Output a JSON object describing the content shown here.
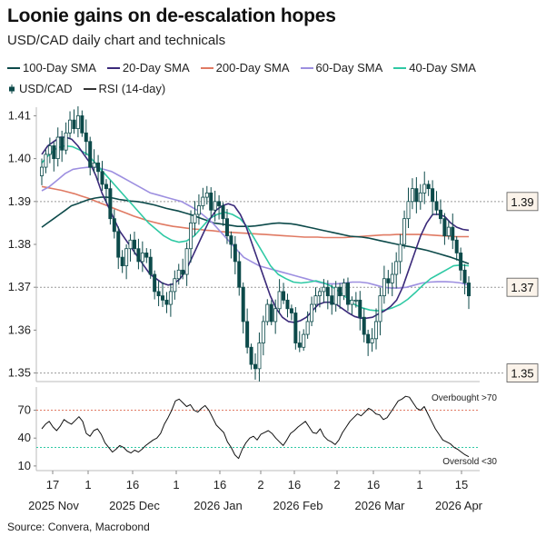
{
  "title": "Loonie gains on de-escalation hopes",
  "subtitle": "USD/CAD daily chart and technicals",
  "source": "Source: Convera, Macrobond",
  "colors": {
    "sma100": "#0d4a4a",
    "sma20": "#3b2a7a",
    "sma200": "#e07a63",
    "sma60": "#9d8fe0",
    "sma40": "#2fc9a4",
    "candle": "#0d4a4a",
    "rsi": "#111111",
    "overbought": "#e07a63",
    "oversold": "#2fc9a4",
    "grid": "#999999"
  },
  "legend": {
    "row1": [
      {
        "label": "100-Day SMA",
        "color": "#0d4a4a",
        "type": "line"
      },
      {
        "label": "20-Day SMA",
        "color": "#3b2a7a",
        "type": "line"
      },
      {
        "label": "200-Day SMA",
        "color": "#e07a63",
        "type": "line"
      },
      {
        "label": "60-Day SMA",
        "color": "#9d8fe0",
        "type": "line"
      },
      {
        "label": "40-Day SMA",
        "color": "#2fc9a4",
        "type": "line"
      }
    ],
    "row2": [
      {
        "label": "USD/CAD",
        "color": "#0d4a4a",
        "type": "candle"
      },
      {
        "label": "RSI (14-day)",
        "color": "#333333",
        "type": "line"
      }
    ]
  },
  "chart_data": {
    "type": "candlestick",
    "price_panel": {
      "ylim": [
        1.348,
        1.412
      ],
      "yticks": [
        1.35,
        1.36,
        1.37,
        1.38,
        1.39,
        1.4,
        1.41
      ],
      "ytick_labels": [
        "1.35",
        "1.36",
        "1.37",
        "1.38",
        "1.39",
        "1.40",
        "1.41"
      ],
      "reference_levels": [
        {
          "value": 1.39,
          "label": "1.39"
        },
        {
          "value": 1.37,
          "label": "1.37"
        },
        {
          "value": 1.35,
          "label": "1.35"
        }
      ],
      "closes": [
        1.398,
        1.401,
        1.403,
        1.4,
        1.405,
        1.402,
        1.406,
        1.409,
        1.407,
        1.41,
        1.406,
        1.404,
        1.398,
        1.399,
        1.397,
        1.394,
        1.393,
        1.386,
        1.383,
        1.377,
        1.375,
        1.379,
        1.381,
        1.379,
        1.376,
        1.378,
        1.377,
        1.373,
        1.369,
        1.368,
        1.367,
        1.366,
        1.369,
        1.372,
        1.374,
        1.373,
        1.379,
        1.385,
        1.387,
        1.389,
        1.391,
        1.392,
        1.388,
        1.39,
        1.389,
        1.386,
        1.382,
        1.38,
        1.376,
        1.37,
        1.362,
        1.356,
        1.352,
        1.351,
        1.357,
        1.362,
        1.366,
        1.362,
        1.365,
        1.369,
        1.367,
        1.365,
        1.364,
        1.357,
        1.356,
        1.359,
        1.362,
        1.366,
        1.368,
        1.369,
        1.37,
        1.368,
        1.366,
        1.37,
        1.368,
        1.371,
        1.366,
        1.367,
        1.367,
        1.363,
        1.359,
        1.357,
        1.358,
        1.362,
        1.368,
        1.372,
        1.371,
        1.373,
        1.376,
        1.38,
        1.386,
        1.39,
        1.393,
        1.39,
        1.392,
        1.394,
        1.393,
        1.39,
        1.388,
        1.386,
        1.382,
        1.384,
        1.381,
        1.378,
        1.374,
        1.371,
        1.368
      ],
      "series": [
        {
          "name": "100-Day SMA",
          "color": "#0d4a4a",
          "values": [
            1.384,
            1.385,
            1.386,
            1.387,
            1.388,
            1.389,
            1.3895,
            1.39,
            1.3905,
            1.3908,
            1.391,
            1.391,
            1.3908,
            1.3905,
            1.3903,
            1.3901,
            1.39,
            1.3898,
            1.3895,
            1.3892,
            1.3888,
            1.3884,
            1.3881,
            1.3878,
            1.3874,
            1.387,
            1.3865,
            1.386,
            1.3855,
            1.385,
            1.3848,
            1.3846,
            1.3844,
            1.3842,
            1.3842,
            1.3842,
            1.3843,
            1.3845,
            1.3847,
            1.3849,
            1.385,
            1.3849,
            1.3848,
            1.3846,
            1.3843,
            1.384,
            1.3837,
            1.3834,
            1.3831,
            1.3828,
            1.3825,
            1.3822,
            1.3819,
            1.3818,
            1.3817,
            1.3815,
            1.3812,
            1.3809,
            1.3806,
            1.3803,
            1.38,
            1.3797,
            1.3795,
            1.3792,
            1.3789,
            1.3786,
            1.3782,
            1.3778,
            1.3774,
            1.377,
            1.3765,
            1.376,
            1.3755
          ]
        },
        {
          "name": "20-Day SMA",
          "color": "#3b2a7a",
          "values": [
            1.401,
            1.403,
            1.404,
            1.405,
            1.405,
            1.4045,
            1.403,
            1.401,
            1.399,
            1.396,
            1.392,
            1.389,
            1.386,
            1.383,
            1.381,
            1.379,
            1.377,
            1.375,
            1.373,
            1.372,
            1.371,
            1.3705,
            1.3708,
            1.372,
            1.374,
            1.377,
            1.38,
            1.383,
            1.386,
            1.388,
            1.389,
            1.3895,
            1.389,
            1.387,
            1.384,
            1.38,
            1.376,
            1.372,
            1.368,
            1.365,
            1.363,
            1.362,
            1.3618,
            1.3622,
            1.363,
            1.3645,
            1.366,
            1.3665,
            1.3665,
            1.366,
            1.365,
            1.364,
            1.3632,
            1.3628,
            1.3628,
            1.363,
            1.3638,
            1.3645,
            1.3655,
            1.367,
            1.37,
            1.374,
            1.378,
            1.382,
            1.385,
            1.387,
            1.387,
            1.3865,
            1.385,
            1.384,
            1.3835,
            1.3833
          ]
        },
        {
          "name": "200-Day SMA",
          "color": "#e07a63",
          "values": [
            1.3935,
            1.3932,
            1.3929,
            1.3926,
            1.3922,
            1.3918,
            1.3913,
            1.3908,
            1.3902,
            1.3896,
            1.389,
            1.3884,
            1.3878,
            1.3872,
            1.3866,
            1.3861,
            1.3856,
            1.3852,
            1.3848,
            1.3845,
            1.3842,
            1.384,
            1.3838,
            1.3836,
            1.3835,
            1.3833,
            1.3832,
            1.383,
            1.3829,
            1.3828,
            1.3827,
            1.3826,
            1.3825,
            1.3824,
            1.3823,
            1.3822,
            1.3821,
            1.382,
            1.3819,
            1.3818,
            1.3817,
            1.3817,
            1.3817,
            1.3816,
            1.3816,
            1.3816,
            1.3816,
            1.3817,
            1.3818,
            1.3819,
            1.382,
            1.3821,
            1.3822,
            1.3822,
            1.3823,
            1.3823,
            1.3823,
            1.3823,
            1.3823,
            1.3822,
            1.3821,
            1.382,
            1.3819,
            1.3818,
            1.3818,
            1.3818
          ]
        },
        {
          "name": "60-Day SMA",
          "color": "#9d8fe0",
          "values": [
            1.3925,
            1.3935,
            1.395,
            1.3965,
            1.3975,
            1.3978,
            1.398,
            1.398,
            1.3975,
            1.397,
            1.396,
            1.395,
            1.394,
            1.393,
            1.392,
            1.3915,
            1.391,
            1.3905,
            1.39,
            1.389,
            1.388,
            1.3865,
            1.385,
            1.383,
            1.381,
            1.379,
            1.377,
            1.376,
            1.375,
            1.3745,
            1.374,
            1.3735,
            1.373,
            1.3725,
            1.372,
            1.3715,
            1.371,
            1.3708,
            1.3708,
            1.371,
            1.3712,
            1.3712,
            1.371,
            1.3705,
            1.37,
            1.3698,
            1.3698,
            1.37,
            1.3705,
            1.371,
            1.3712,
            1.3713,
            1.3713,
            1.3712,
            1.371,
            1.3705
          ]
        },
        {
          "name": "40-Day SMA",
          "color": "#2fc9a4",
          "values": [
            1.399,
            1.401,
            1.4025,
            1.403,
            1.4028,
            1.402,
            1.401,
            1.399,
            1.397,
            1.395,
            1.393,
            1.391,
            1.389,
            1.387,
            1.385,
            1.3835,
            1.382,
            1.381,
            1.3805,
            1.3808,
            1.382,
            1.384,
            1.386,
            1.387,
            1.3875,
            1.387,
            1.386,
            1.384,
            1.381,
            1.378,
            1.375,
            1.373,
            1.372,
            1.3712,
            1.371,
            1.3712,
            1.3715,
            1.371,
            1.3702,
            1.369,
            1.3675,
            1.366,
            1.3652,
            1.3647,
            1.3645,
            1.3647,
            1.3652,
            1.366,
            1.3672,
            1.3688,
            1.3705,
            1.372,
            1.373,
            1.374,
            1.375,
            1.3752,
            1.375
          ]
        }
      ]
    },
    "rsi_panel": {
      "ylim": [
        5,
        95
      ],
      "yticks": [
        10,
        40,
        70
      ],
      "ytick_labels": [
        "10",
        "40",
        "70"
      ],
      "overbought": {
        "value": 70,
        "label": "Overbought >70"
      },
      "oversold": {
        "value": 30,
        "label": "Oversold <30"
      },
      "values": [
        50,
        55,
        58,
        52,
        48,
        53,
        60,
        57,
        55,
        59,
        63,
        58,
        45,
        42,
        48,
        50,
        44,
        35,
        30,
        25,
        28,
        32,
        30,
        26,
        24,
        27,
        25,
        28,
        32,
        35,
        38,
        40,
        45,
        55,
        62,
        70,
        80,
        82,
        78,
        74,
        76,
        70,
        68,
        72,
        75,
        70,
        62,
        54,
        50,
        46,
        36,
        30,
        22,
        18,
        28,
        35,
        40,
        42,
        38,
        44,
        46,
        48,
        45,
        40,
        36,
        32,
        38,
        45,
        48,
        52,
        55,
        58,
        52,
        46,
        45,
        50,
        42,
        38,
        36,
        33,
        38,
        46,
        52,
        58,
        62,
        66,
        64,
        68,
        72,
        70,
        66,
        65,
        60,
        62,
        68,
        74,
        80,
        82,
        85,
        84,
        78,
        72,
        70,
        74,
        66,
        58,
        50,
        44,
        38,
        36,
        34,
        30,
        28,
        25,
        22,
        20
      ]
    },
    "x_axis": {
      "day_ticks": [
        "17",
        "1",
        "16",
        "1",
        "16",
        "2",
        "16",
        "2",
        "16",
        "1",
        "15"
      ],
      "month_labels": [
        "2025 Nov",
        "2025 Dec",
        "2026 Jan",
        "2026 Feb",
        "2026 Mar",
        "2026 Apr"
      ]
    }
  }
}
